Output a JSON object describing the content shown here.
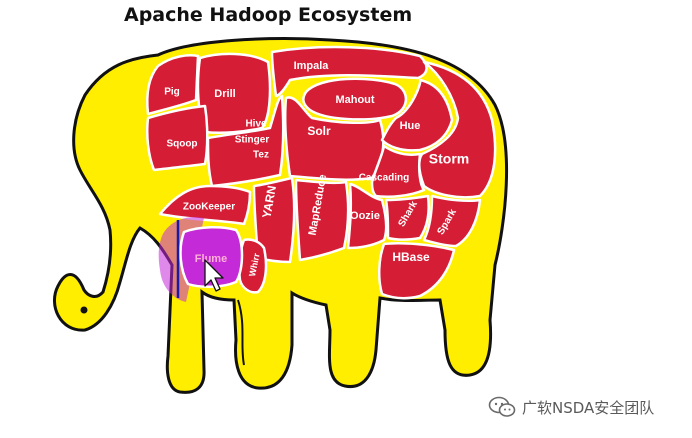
{
  "title": "Apache Hadoop Ecosystem",
  "colors": {
    "body": "#ffee00",
    "outline": "#111111",
    "piece": "#d51d35",
    "highlight": "#c42ad8"
  },
  "components": {
    "pig": "Pig",
    "drill": "Drill",
    "impala": "Impala",
    "mahout": "Mahout",
    "sqoop": "Sqoop",
    "hive": "Hive",
    "stinger": "Stinger",
    "tez": "Tez",
    "solr": "Solr",
    "hue": "Hue",
    "storm": "Storm",
    "cascading": "Cascading",
    "zookeeper": "ZooKeeper",
    "yarn": "YARN",
    "mapreduce": "MapReduce",
    "oozie": "Oozie",
    "shark": "Shark",
    "spark": "Spark",
    "flume": "Flume",
    "whirr": "Whirr",
    "hbase": "HBase"
  },
  "highlighted": "Flume",
  "watermark": {
    "icon": "wechat-icon",
    "text": "广软NSDA安全团队"
  }
}
